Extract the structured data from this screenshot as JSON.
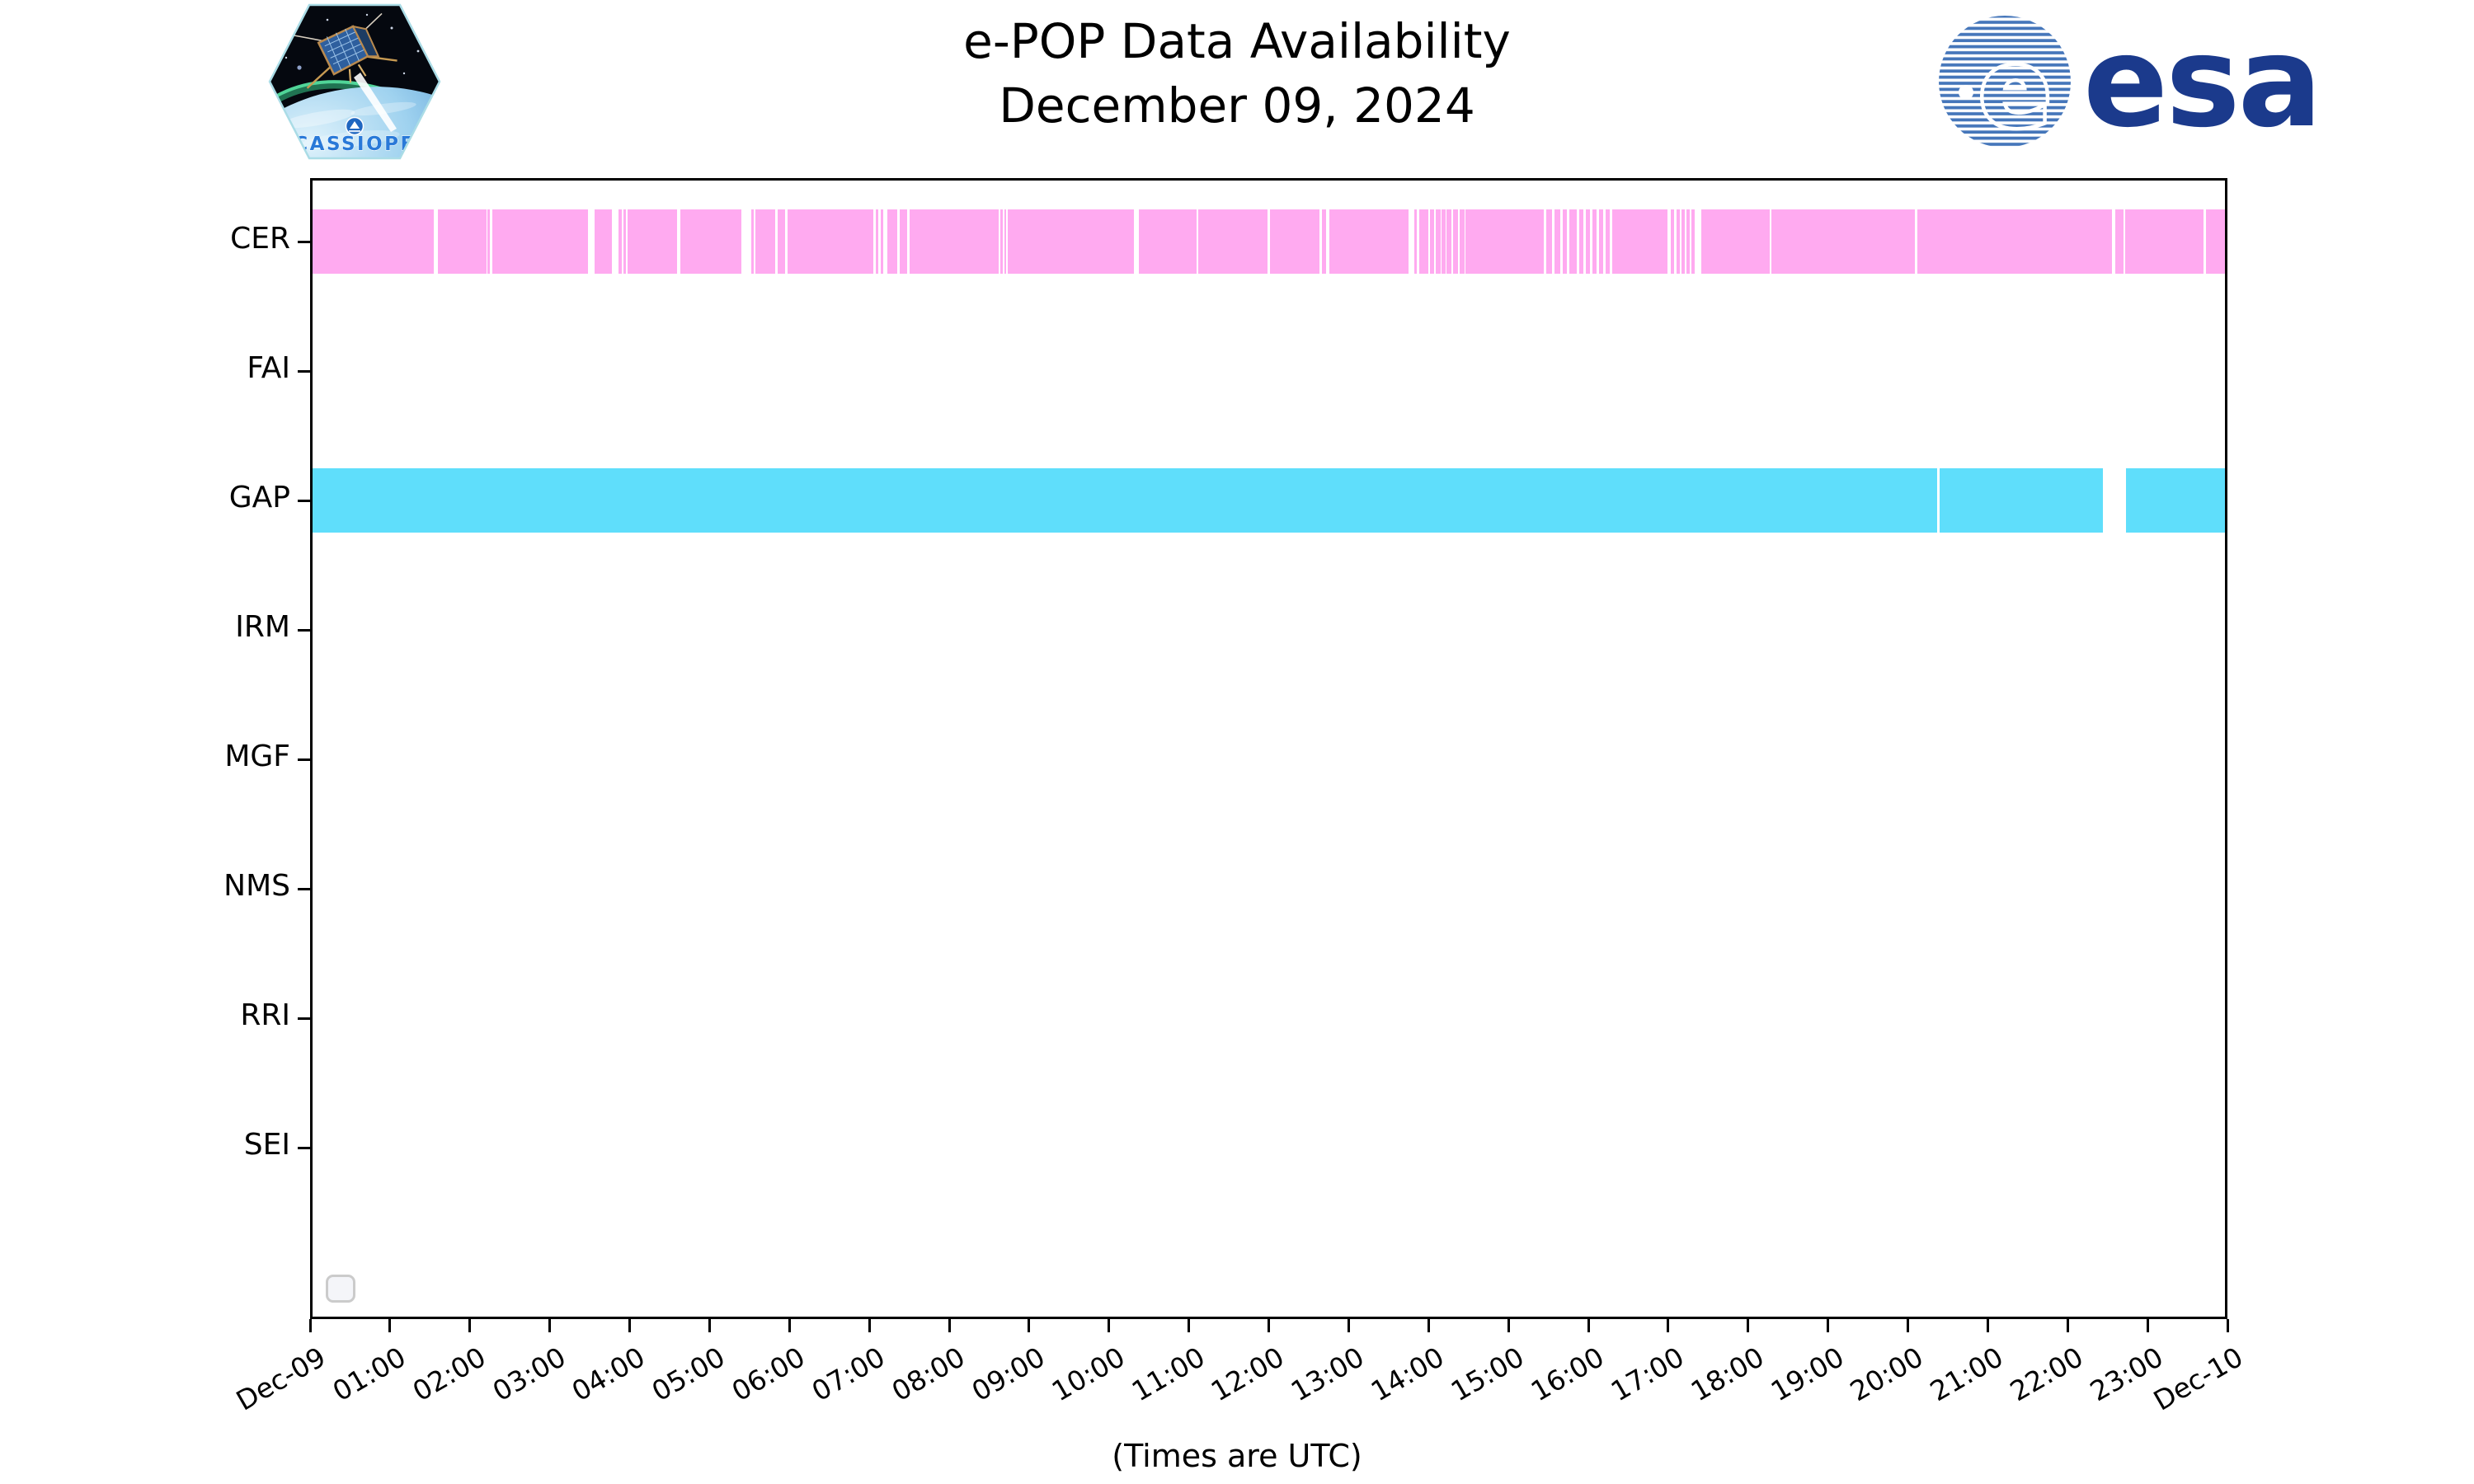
{
  "header": {
    "title_line1": "e-POP Data Availability",
    "title_line2": "December 09, 2024",
    "cassiope_badge_label": "CASSIOPE",
    "esa_wordmark": "esa"
  },
  "footer_note": "(Times are UTC)",
  "chart_data": {
    "type": "timeline",
    "title": "e-POP Data Availability",
    "subtitle": "December 09, 2024",
    "xlabel": "(Times are UTC)",
    "x_axis": {
      "hours_span": 24,
      "tick_labels": [
        "Dec-09",
        "01:00",
        "02:00",
        "03:00",
        "04:00",
        "05:00",
        "06:00",
        "07:00",
        "08:00",
        "09:00",
        "10:00",
        "11:00",
        "12:00",
        "13:00",
        "14:00",
        "15:00",
        "16:00",
        "17:00",
        "18:00",
        "19:00",
        "20:00",
        "21:00",
        "22:00",
        "23:00",
        "Dec-10"
      ]
    },
    "y_axis": {
      "instruments": [
        "CER",
        "FAI",
        "GAP",
        "IRM",
        "MGF",
        "NMS",
        "RRI",
        "SEI"
      ]
    },
    "legend_box_present": true,
    "rows": [
      {
        "name": "CER",
        "color": "#ffaaf0",
        "has_data": true,
        "coverage": "00:00-24:00 with many short dropouts",
        "gap_count": 55,
        "gaps_frac": [
          [
            0.0632,
            0.0654
          ],
          [
            0.0908,
            0.0916
          ],
          [
            0.0929,
            0.0938
          ],
          [
            0.1441,
            0.1475
          ],
          [
            0.1566,
            0.16
          ],
          [
            0.1617,
            0.1626
          ],
          [
            0.1639,
            0.1647
          ],
          [
            0.1905,
            0.1923
          ],
          [
            0.2241,
            0.2292
          ],
          [
            0.2305,
            0.2314
          ],
          [
            0.2417,
            0.2434
          ],
          [
            0.2469,
            0.2482
          ],
          [
            0.2933,
            0.2946
          ],
          [
            0.2959,
            0.2972
          ],
          [
            0.2985,
            0.3006
          ],
          [
            0.3058,
            0.3071
          ],
          [
            0.311,
            0.3123
          ],
          [
            0.3587,
            0.3595
          ],
          [
            0.3608,
            0.3617
          ],
          [
            0.3626,
            0.3634
          ],
          [
            0.4297,
            0.4323
          ],
          [
            0.4624,
            0.4632
          ],
          [
            0.4994,
            0.5006
          ],
          [
            0.5265,
            0.5277
          ],
          [
            0.5299,
            0.5316
          ],
          [
            0.5733,
            0.5763
          ],
          [
            0.5776,
            0.5785
          ],
          [
            0.5836,
            0.5845
          ],
          [
            0.5866,
            0.5875
          ],
          [
            0.5897,
            0.5905
          ],
          [
            0.5923,
            0.5931
          ],
          [
            0.5957,
            0.5965
          ],
          [
            0.5991,
            0.6
          ],
          [
            0.6022,
            0.603
          ],
          [
            0.6439,
            0.6452
          ],
          [
            0.6482,
            0.6495
          ],
          [
            0.6525,
            0.6538
          ],
          [
            0.6559,
            0.6572
          ],
          [
            0.6611,
            0.6624
          ],
          [
            0.6645,
            0.6658
          ],
          [
            0.668,
            0.6692
          ],
          [
            0.6714,
            0.6727
          ],
          [
            0.6748,
            0.6761
          ],
          [
            0.6782,
            0.6796
          ],
          [
            0.7084,
            0.7101
          ],
          [
            0.7118,
            0.7131
          ],
          [
            0.7148,
            0.7157
          ],
          [
            0.7174,
            0.7183
          ],
          [
            0.72,
            0.7208
          ],
          [
            0.7226,
            0.726
          ],
          [
            0.7621,
            0.763
          ],
          [
            0.8378,
            0.8391
          ],
          [
            0.9411,
            0.9428
          ],
          [
            0.9471,
            0.948
          ],
          [
            0.9888,
            0.9901
          ]
        ]
      },
      {
        "name": "FAI",
        "color": null,
        "has_data": false,
        "coverage": "none",
        "gap_count": 0,
        "gaps_frac": []
      },
      {
        "name": "GAP",
        "color": "#5fdefb",
        "has_data": true,
        "coverage": "00:00-24:00 with two dropouts (~20:23-20:25 and ~22:28-22:46 UTC)",
        "gap_count": 2,
        "gaps_frac": [
          [
            0.8495,
            0.8508
          ],
          [
            0.9363,
            0.9484
          ]
        ]
      },
      {
        "name": "IRM",
        "color": null,
        "has_data": false,
        "coverage": "none",
        "gap_count": 0,
        "gaps_frac": []
      },
      {
        "name": "MGF",
        "color": null,
        "has_data": false,
        "coverage": "none",
        "gap_count": 0,
        "gaps_frac": []
      },
      {
        "name": "NMS",
        "color": null,
        "has_data": false,
        "coverage": "none",
        "gap_count": 0,
        "gaps_frac": []
      },
      {
        "name": "RRI",
        "color": null,
        "has_data": false,
        "coverage": "none",
        "gap_count": 0,
        "gaps_frac": []
      },
      {
        "name": "SEI",
        "color": null,
        "has_data": false,
        "coverage": "none",
        "gap_count": 0,
        "gaps_frac": []
      }
    ]
  }
}
